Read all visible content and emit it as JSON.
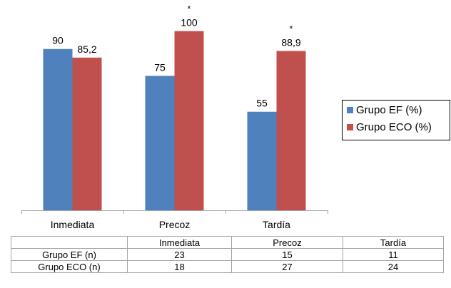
{
  "chart_data": {
    "type": "bar",
    "categories": [
      "Inmediata",
      "Precoz",
      "Tardía"
    ],
    "series": [
      {
        "name": "Grupo EF (%)",
        "values": [
          90,
          75,
          55
        ],
        "labels": [
          "90",
          "75",
          "55"
        ],
        "color": "#4f81bd"
      },
      {
        "name": "Grupo ECO (%)",
        "values": [
          85.2,
          100,
          88.9
        ],
        "labels": [
          "85,2",
          "100",
          "88,9"
        ],
        "color": "#c0504d"
      }
    ],
    "annotations": [
      {
        "category": "Precoz",
        "series": "Grupo ECO (%)",
        "text": "*"
      },
      {
        "category": "Tardía",
        "series": "Grupo ECO (%)",
        "text": "*"
      }
    ],
    "ylim": [
      0,
      110
    ],
    "grid": false,
    "legend": "right",
    "title": "",
    "xlabel": "",
    "ylabel": ""
  },
  "table": {
    "headers": [
      "",
      "Inmediata",
      "Precoz",
      "Tardía"
    ],
    "rows": [
      {
        "label": "Grupo EF (n)",
        "values": [
          "23",
          "15",
          "11"
        ]
      },
      {
        "label": "Grupo ECO (n)",
        "values": [
          "18",
          "27",
          "24"
        ]
      }
    ]
  }
}
